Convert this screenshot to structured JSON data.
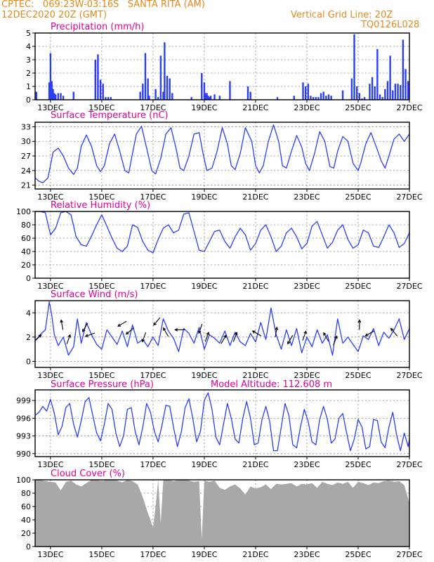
{
  "header": {
    "line1_left": "CPTEC:   069:23W-03:16S   SANTA RITA (AM)",
    "line2_left": "12DEC2020 20Z (GMT)",
    "line2_right": "Vertical Grid Line: 20Z",
    "line3_right": "TQ0126L028"
  },
  "x_axis": {
    "tick_labels": [
      "13DEC",
      "15DEC",
      "17DEC",
      "19DEC",
      "21DEC",
      "23DEC",
      "25DEC",
      "27DEC"
    ],
    "tick_days": [
      13,
      15,
      17,
      19,
      21,
      23,
      25,
      27
    ],
    "range_days": [
      12.4,
      27.0
    ]
  },
  "colors": {
    "header": "#e08a1e",
    "title": "#e0009a",
    "line": "#2b3ff2",
    "bar": "#2b3ff2",
    "cloud": "#a8a8a8",
    "arrow": "#000000",
    "grid": "#888888"
  },
  "chart_data": [
    {
      "type": "bar",
      "title": "Precipitation (mm/h)",
      "ylim": [
        0,
        5
      ],
      "yticks": [
        "0",
        "1",
        "2",
        "3",
        "4",
        "5"
      ],
      "ytick_values": [
        0,
        1,
        2,
        3,
        4,
        5
      ],
      "x": [
        12.45,
        12.95,
        13.0,
        13.05,
        13.1,
        13.15,
        13.2,
        13.3,
        13.4,
        13.5,
        13.9,
        14.75,
        14.85,
        14.95,
        15.05,
        15.15,
        15.25,
        15.35,
        16.5,
        16.6,
        16.7,
        16.8,
        16.85,
        17.1,
        17.2,
        17.3,
        17.4,
        17.45,
        17.55,
        17.65,
        17.75,
        18.5,
        18.9,
        19.0,
        19.05,
        19.1,
        19.15,
        19.2,
        19.25,
        19.4,
        19.6,
        20.0,
        20.7,
        20.8,
        21.85,
        22.5,
        22.85,
        22.95,
        23.05,
        23.15,
        23.25,
        23.35,
        23.45,
        23.55,
        23.65,
        23.75,
        23.85,
        23.95,
        24.4,
        24.75,
        24.85,
        24.95,
        25.05,
        25.15,
        25.25,
        25.45,
        25.55,
        25.65,
        25.75,
        25.85,
        25.95,
        26.05,
        26.15,
        26.25,
        26.35,
        26.45,
        26.55,
        26.65,
        26.75,
        26.85,
        26.95
      ],
      "values": [
        0.6,
        1.3,
        3.5,
        1.4,
        0.8,
        0.5,
        0.4,
        0.5,
        0.5,
        0.3,
        0.6,
        3.0,
        3.4,
        1.5,
        1.2,
        0.2,
        0.2,
        0.2,
        0.6,
        1.2,
        3.5,
        1.6,
        0.3,
        0.8,
        0.2,
        3.3,
        0.6,
        4.3,
        1.8,
        1.6,
        0.5,
        0.2,
        2.0,
        1.3,
        0.5,
        0.5,
        0.3,
        0.2,
        0.3,
        0.4,
        0.3,
        1.4,
        1.0,
        0.6,
        0.2,
        0.3,
        1.3,
        1.0,
        1.2,
        0.3,
        0.2,
        0.2,
        0.2,
        0.5,
        0.6,
        0.3,
        0.4,
        0.3,
        0.7,
        1.6,
        4.9,
        1.0,
        0.5,
        0.1,
        0.2,
        1.2,
        1.7,
        1.0,
        3.8,
        0.4,
        0.2,
        0.8,
        1.4,
        3.3,
        0.7,
        1.2,
        1.2,
        1.1,
        4.5,
        2.3,
        1.4
      ]
    },
    {
      "type": "line",
      "title": "Surface Temperature (nC)",
      "ylim": [
        20.5,
        33.5
      ],
      "yticks": [
        "21",
        "24",
        "27",
        "30",
        "33"
      ],
      "ytick_values": [
        21,
        24,
        27,
        30,
        33
      ],
      "x": [
        12.4,
        12.55,
        12.7,
        12.9,
        13.1,
        13.3,
        13.5,
        13.7,
        13.9,
        14.05,
        14.2,
        14.4,
        14.6,
        14.8,
        14.95,
        15.1,
        15.3,
        15.5,
        15.7,
        15.9,
        16.05,
        16.2,
        16.35,
        16.55,
        16.8,
        16.95,
        17.1,
        17.3,
        17.5,
        17.7,
        17.9,
        18.05,
        18.2,
        18.4,
        18.6,
        18.8,
        18.95,
        19.1,
        19.3,
        19.5,
        19.7,
        19.9,
        20.05,
        20.2,
        20.4,
        20.6,
        20.85,
        21.0,
        21.15,
        21.3,
        21.5,
        21.7,
        21.9,
        22.05,
        22.2,
        22.4,
        22.6,
        22.8,
        22.95,
        23.1,
        23.3,
        23.5,
        23.7,
        23.9,
        24.05,
        24.2,
        24.4,
        24.6,
        24.8,
        25.0,
        25.1,
        25.3,
        25.5,
        25.7,
        25.9,
        26.05,
        26.2,
        26.4,
        26.6,
        26.8,
        27.0
      ],
      "values": [
        22.5,
        21.8,
        21.5,
        22.5,
        27.8,
        28.6,
        27.0,
        24.5,
        23.2,
        24.5,
        29.0,
        31.3,
        29.0,
        25.0,
        23.8,
        25.0,
        29.5,
        31.5,
        28.0,
        24.0,
        23.5,
        27.5,
        31.5,
        33.1,
        27.5,
        24.0,
        23.3,
        26.5,
        31.5,
        32.8,
        28.5,
        24.5,
        24.0,
        27.0,
        31.5,
        31.8,
        27.5,
        24.0,
        24.5,
        28.0,
        32.8,
        29.5,
        25.0,
        24.2,
        27.5,
        32.8,
        30.0,
        25.0,
        23.5,
        25.0,
        30.0,
        33.4,
        30.0,
        25.0,
        24.5,
        28.0,
        31.2,
        28.8,
        25.5,
        24.0,
        27.5,
        32.0,
        30.0,
        24.8,
        24.5,
        28.0,
        31.0,
        30.0,
        25.5,
        24.0,
        25.5,
        29.5,
        31.8,
        29.0,
        26.0,
        24.5,
        27.0,
        30.5,
        31.5,
        30.0,
        31.5
      ]
    },
    {
      "type": "line",
      "title": "Relative Humidity (%)",
      "ylim": [
        0,
        100
      ],
      "yticks": [
        "0",
        "20",
        "40",
        "60",
        "80",
        "100"
      ],
      "ytick_values": [
        0,
        20,
        40,
        60,
        80,
        100
      ],
      "x": [
        12.4,
        12.6,
        12.8,
        13.0,
        13.2,
        13.4,
        13.6,
        13.8,
        14.0,
        14.2,
        14.4,
        14.6,
        14.8,
        15.0,
        15.2,
        15.4,
        15.6,
        15.8,
        16.0,
        16.2,
        16.4,
        16.6,
        16.8,
        17.0,
        17.2,
        17.4,
        17.6,
        17.8,
        18.0,
        18.2,
        18.4,
        18.6,
        18.8,
        19.0,
        19.2,
        19.4,
        19.6,
        19.8,
        20.0,
        20.2,
        20.4,
        20.6,
        20.8,
        21.0,
        21.2,
        21.4,
        21.6,
        21.8,
        22.0,
        22.2,
        22.4,
        22.6,
        22.8,
        23.0,
        23.2,
        23.4,
        23.6,
        23.8,
        24.0,
        24.2,
        24.4,
        24.6,
        24.8,
        25.0,
        25.2,
        25.4,
        25.6,
        25.8,
        26.0,
        26.2,
        26.4,
        26.6,
        26.8,
        27.0
      ],
      "values": [
        100,
        100,
        98,
        65,
        75,
        98,
        100,
        95,
        62,
        50,
        48,
        63,
        80,
        95,
        78,
        60,
        45,
        40,
        48,
        80,
        76,
        55,
        42,
        38,
        58,
        75,
        80,
        68,
        72,
        96,
        98,
        70,
        42,
        40,
        55,
        70,
        72,
        55,
        45,
        62,
        75,
        65,
        42,
        52,
        72,
        80,
        62,
        40,
        48,
        68,
        75,
        62,
        44,
        52,
        78,
        85,
        65,
        45,
        54,
        72,
        80,
        58,
        45,
        50,
        72,
        68,
        48,
        46,
        62,
        80,
        68,
        46,
        52,
        68
      ]
    },
    {
      "type": "line",
      "title": "Surface Wind (m/s)",
      "ylim": [
        -0.5,
        5
      ],
      "yticks": [
        "0",
        "2",
        "4"
      ],
      "ytick_values": [
        0,
        2,
        4
      ],
      "x": [
        12.4,
        12.6,
        12.8,
        12.95,
        13.05,
        13.15,
        13.3,
        13.5,
        13.7,
        13.9,
        14.05,
        14.2,
        14.4,
        14.6,
        14.8,
        15.0,
        15.2,
        15.4,
        15.6,
        15.8,
        16.0,
        16.2,
        16.4,
        16.6,
        16.8,
        17.0,
        17.2,
        17.4,
        17.6,
        17.8,
        18.0,
        18.2,
        18.4,
        18.6,
        18.8,
        19.0,
        19.2,
        19.4,
        19.6,
        19.8,
        20.0,
        20.2,
        20.4,
        20.6,
        20.8,
        21.0,
        21.2,
        21.4,
        21.6,
        21.8,
        22.0,
        22.2,
        22.4,
        22.6,
        22.8,
        23.0,
        23.2,
        23.4,
        23.6,
        23.8,
        24.0,
        24.2,
        24.4,
        24.6,
        24.8,
        25.0,
        25.2,
        25.4,
        25.6,
        25.8,
        26.0,
        26.2,
        26.4,
        26.6,
        26.8,
        27.0
      ],
      "values": [
        1.7,
        2.2,
        2.6,
        4.9,
        3.8,
        2.2,
        1.3,
        2.0,
        0.5,
        1.2,
        3.5,
        1.5,
        3.2,
        2.2,
        1.4,
        1.0,
        2.6,
        2.0,
        1.4,
        2.5,
        1.2,
        3.0,
        1.5,
        1.8,
        1.2,
        2.0,
        1.3,
        3.5,
        2.5,
        1.9,
        0.8,
        2.7,
        2.3,
        1.5,
        2.8,
        1.0,
        2.2,
        1.9,
        1.5,
        2.5,
        1.3,
        2.4,
        1.6,
        1.3,
        2.3,
        1.6,
        3.2,
        1.8,
        4.4,
        2.2,
        1.0,
        2.6,
        1.3,
        2.7,
        0.7,
        2.0,
        1.2,
        2.6,
        1.5,
        2.2,
        0.5,
        3.5,
        1.5,
        2.0,
        1.4,
        0.8,
        2.1,
        1.8,
        2.7,
        1.3,
        2.4,
        1.9,
        2.6,
        3.5,
        1.8,
        2.7
      ],
      "arrows": [
        {
          "x": 12.5,
          "speed": 1.9,
          "dir": 45
        },
        {
          "x": 13.45,
          "speed": 3.0,
          "dir": 350
        },
        {
          "x": 13.7,
          "speed": 1.8,
          "dir": 20
        },
        {
          "x": 14.35,
          "speed": 2.8,
          "dir": 210
        },
        {
          "x": 14.55,
          "speed": 2.2,
          "dir": 250
        },
        {
          "x": 15.8,
          "speed": 3.1,
          "dir": 240
        },
        {
          "x": 16.1,
          "speed": 2.5,
          "dir": 230
        },
        {
          "x": 16.65,
          "speed": 2.0,
          "dir": 200
        },
        {
          "x": 17.15,
          "speed": 3.3,
          "dir": 220
        },
        {
          "x": 17.5,
          "speed": 2.4,
          "dir": 330
        },
        {
          "x": 18.05,
          "speed": 2.6,
          "dir": 270
        },
        {
          "x": 18.85,
          "speed": 2.7,
          "dir": 200
        },
        {
          "x": 19.1,
          "speed": 2.0,
          "dir": 20
        },
        {
          "x": 19.75,
          "speed": 1.8,
          "dir": 30
        },
        {
          "x": 20.2,
          "speed": 2.0,
          "dir": 20
        },
        {
          "x": 21.05,
          "speed": 2.3,
          "dir": 300
        },
        {
          "x": 21.8,
          "speed": 2.4,
          "dir": 10
        },
        {
          "x": 22.35,
          "speed": 1.8,
          "dir": 210
        },
        {
          "x": 22.9,
          "speed": 2.1,
          "dir": 20
        },
        {
          "x": 23.75,
          "speed": 2.0,
          "dir": 330
        },
        {
          "x": 24.1,
          "speed": 1.7,
          "dir": 20
        },
        {
          "x": 25.05,
          "speed": 3.0,
          "dir": 0
        },
        {
          "x": 25.45,
          "speed": 2.3,
          "dir": 240
        },
        {
          "x": 26.4,
          "speed": 2.4,
          "dir": 320
        }
      ]
    },
    {
      "type": "line",
      "title": "Surface Pressure (hPa)",
      "annotation": "Model Altitude: 112.608 m",
      "ylim": [
        989.5,
        1000.8
      ],
      "yticks": [
        "990",
        "993",
        "996",
        "999"
      ],
      "ytick_values": [
        990,
        993,
        996,
        999
      ],
      "x": [
        12.4,
        12.55,
        12.7,
        12.85,
        13.0,
        13.15,
        13.3,
        13.45,
        13.6,
        13.75,
        13.9,
        14.05,
        14.2,
        14.35,
        14.5,
        14.65,
        14.8,
        14.95,
        15.1,
        15.25,
        15.4,
        15.55,
        15.7,
        15.85,
        16.0,
        16.15,
        16.3,
        16.45,
        16.6,
        16.75,
        16.9,
        17.05,
        17.2,
        17.35,
        17.5,
        17.65,
        17.8,
        17.95,
        18.1,
        18.25,
        18.4,
        18.55,
        18.7,
        18.85,
        19.0,
        19.15,
        19.3,
        19.45,
        19.6,
        19.75,
        19.9,
        20.05,
        20.2,
        20.35,
        20.5,
        20.65,
        20.8,
        20.95,
        21.1,
        21.25,
        21.4,
        21.55,
        21.7,
        21.85,
        22.0,
        22.15,
        22.3,
        22.45,
        22.6,
        22.75,
        22.9,
        23.05,
        23.2,
        23.35,
        23.5,
        23.65,
        23.8,
        23.95,
        24.1,
        24.25,
        24.4,
        24.55,
        24.7,
        24.85,
        25.0,
        25.15,
        25.3,
        25.45,
        25.6,
        25.75,
        25.9,
        26.05,
        26.2,
        26.35,
        26.5,
        26.65,
        26.8,
        26.95,
        27.0
      ],
      "values": [
        996.5,
        997.0,
        998.0,
        997.2,
        999.2,
        996.8,
        993.2,
        994.6,
        997.8,
        998.5,
        995.0,
        992.8,
        995.6,
        998.8,
        999.5,
        996.5,
        993.5,
        992.2,
        995.0,
        998.5,
        997.5,
        993.5,
        991.2,
        993.0,
        997.5,
        997.8,
        993.8,
        991.5,
        994.5,
        998.5,
        997.0,
        993.8,
        992.0,
        994.8,
        998.2,
        998.0,
        994.5,
        991.2,
        993.6,
        997.8,
        999.3,
        996.0,
        992.0,
        993.8,
        999.0,
        1000.3,
        997.5,
        992.8,
        991.5,
        995.0,
        998.5,
        996.0,
        992.5,
        991.8,
        996.0,
        998.8,
        996.0,
        991.5,
        991.8,
        995.8,
        998.0,
        995.5,
        990.5,
        990.5,
        994.5,
        998.5,
        996.5,
        991.5,
        991.0,
        994.5,
        997.5,
        995.5,
        992.0,
        991.5,
        995.8,
        998.0,
        995.8,
        991.8,
        992.5,
        996.0,
        996.8,
        993.5,
        990.5,
        992.5,
        995.8,
        994.5,
        990.8,
        991.2,
        995.8,
        995.6,
        992.0,
        991.0,
        994.5,
        997.0,
        993.2,
        990.5,
        993.5,
        991.2,
        992.5
      ]
    },
    {
      "type": "area",
      "title": "Cloud Cover (%)",
      "ylim": [
        0,
        100
      ],
      "yticks": [
        "0",
        "20",
        "40",
        "60",
        "80",
        "100"
      ],
      "ytick_values": [
        0,
        20,
        40,
        60,
        80,
        100
      ],
      "x": [
        12.4,
        12.6,
        12.8,
        13.0,
        13.2,
        13.4,
        13.6,
        13.8,
        14.0,
        14.2,
        14.4,
        14.6,
        14.8,
        15.0,
        15.2,
        15.4,
        15.6,
        15.8,
        16.0,
        16.2,
        16.4,
        16.6,
        16.8,
        16.9,
        17.0,
        17.1,
        17.2,
        17.3,
        17.4,
        17.6,
        17.8,
        18.0,
        18.2,
        18.4,
        18.6,
        18.8,
        18.9,
        19.0,
        19.2,
        19.4,
        19.6,
        19.8,
        20.0,
        20.2,
        20.4,
        20.6,
        20.8,
        21.0,
        21.2,
        21.4,
        21.6,
        21.8,
        22.0,
        22.2,
        22.4,
        22.6,
        22.8,
        23.0,
        23.2,
        23.4,
        23.6,
        23.8,
        24.0,
        24.2,
        24.4,
        24.6,
        24.8,
        25.0,
        25.2,
        25.4,
        25.6,
        25.8,
        26.0,
        26.2,
        26.4,
        26.6,
        26.8,
        27.0
      ],
      "values": [
        100,
        100,
        98,
        97,
        96,
        84,
        97,
        99,
        93,
        90,
        95,
        100,
        100,
        98,
        100,
        100,
        99,
        96,
        100,
        98,
        93,
        74,
        50,
        40,
        28,
        60,
        100,
        35,
        100,
        100,
        98,
        100,
        100,
        99,
        97,
        98,
        10,
        99,
        97,
        99,
        88,
        85,
        90,
        93,
        87,
        78,
        90,
        87,
        89,
        93,
        86,
        94,
        93,
        94,
        95,
        90,
        94,
        93,
        95,
        88,
        97,
        94,
        92,
        96,
        94,
        97,
        88,
        97,
        95,
        92,
        96,
        95,
        98,
        99,
        97,
        98,
        92,
        65
      ]
    }
  ]
}
